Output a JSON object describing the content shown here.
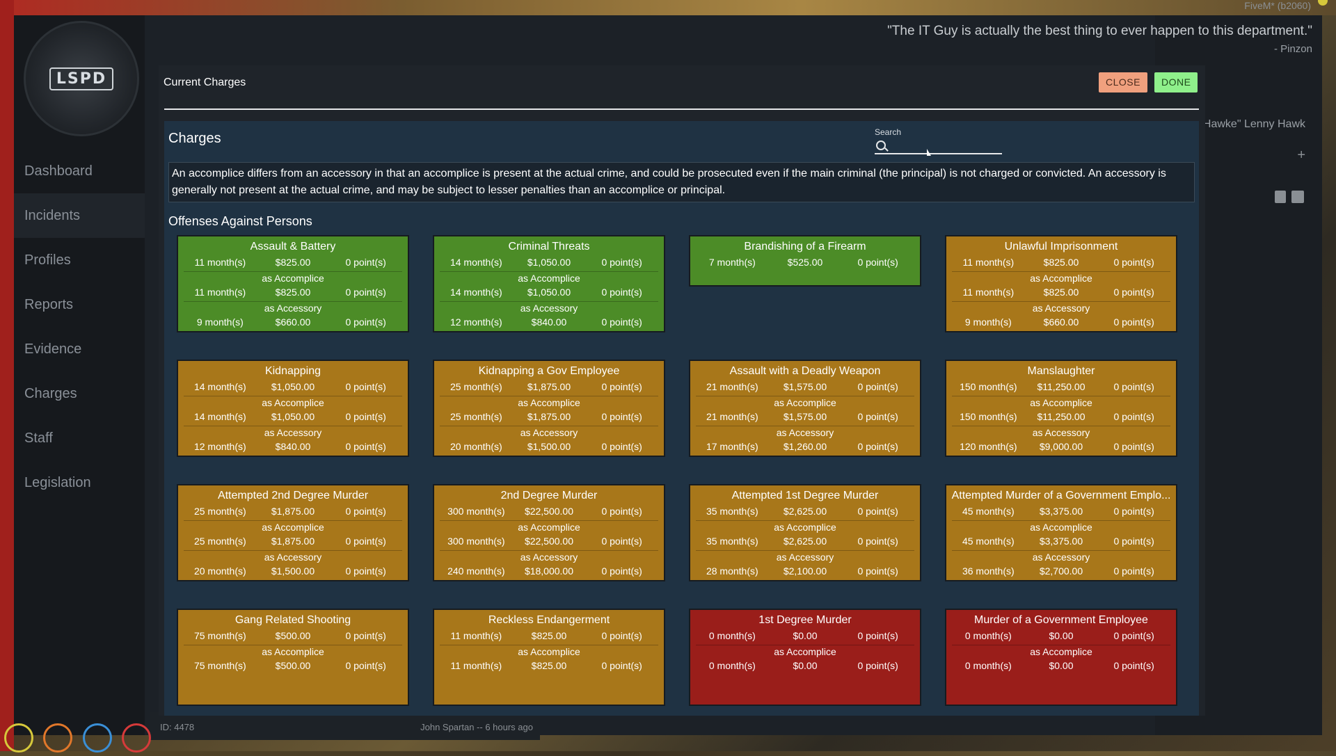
{
  "app": {
    "logo_text": "LSPD",
    "nav": [
      "Dashboard",
      "Incidents",
      "Profiles",
      "Reports",
      "Evidence",
      "Charges",
      "Staff",
      "Legislation"
    ]
  },
  "background": {
    "fivem": "FiveM* (b2060)",
    "quote": "\"The IT Guy is actually the best thing to ever happen to this department.\"",
    "quote_author": "- Pinzon",
    "detective": "det \"Hawke\" Lenny Hawk",
    "plus": "+",
    "report_id": "ID: 4478",
    "report_author": "John Spartan -- 6 hours ago"
  },
  "modal": {
    "title": "Current Charges",
    "close_label": "CLOSE",
    "done_label": "DONE",
    "charges_title": "Charges",
    "search_label": "Search",
    "search_placeholder": "",
    "info": "An accomplice differs from an accessory in that an accomplice is present at the actual crime, and could be prosecuted even if the main criminal (the principal) is not charged or convicted. An accessory is generally not present at the actual crime, and may be subject to lesser penalties than an accomplice or principal.",
    "section": "Offenses Against Persons",
    "accomplice_label": "as Accomplice",
    "accessory_label": "as Accessory"
  },
  "charges": [
    {
      "name": "Assault & Battery",
      "color": "green",
      "main": [
        "11 month(s)",
        "$825.00",
        "0 point(s)"
      ],
      "accomplice": [
        "11 month(s)",
        "$825.00",
        "0 point(s)"
      ],
      "accessory": [
        "9 month(s)",
        "$660.00",
        "0 point(s)"
      ]
    },
    {
      "name": "Criminal Threats",
      "color": "green",
      "main": [
        "14 month(s)",
        "$1,050.00",
        "0 point(s)"
      ],
      "accomplice": [
        "14 month(s)",
        "$1,050.00",
        "0 point(s)"
      ],
      "accessory": [
        "12 month(s)",
        "$840.00",
        "0 point(s)"
      ]
    },
    {
      "name": "Brandishing of a Firearm",
      "color": "green",
      "main": [
        "7 month(s)",
        "$525.00",
        "0 point(s)"
      ]
    },
    {
      "name": "Unlawful Imprisonment",
      "color": "amber",
      "main": [
        "11 month(s)",
        "$825.00",
        "0 point(s)"
      ],
      "accomplice": [
        "11 month(s)",
        "$825.00",
        "0 point(s)"
      ],
      "accessory": [
        "9 month(s)",
        "$660.00",
        "0 point(s)"
      ]
    },
    {
      "name": "Kidnapping",
      "color": "amber",
      "main": [
        "14 month(s)",
        "$1,050.00",
        "0 point(s)"
      ],
      "accomplice": [
        "14 month(s)",
        "$1,050.00",
        "0 point(s)"
      ],
      "accessory": [
        "12 month(s)",
        "$840.00",
        "0 point(s)"
      ]
    },
    {
      "name": "Kidnapping a Gov Employee",
      "color": "amber",
      "main": [
        "25 month(s)",
        "$1,875.00",
        "0 point(s)"
      ],
      "accomplice": [
        "25 month(s)",
        "$1,875.00",
        "0 point(s)"
      ],
      "accessory": [
        "20 month(s)",
        "$1,500.00",
        "0 point(s)"
      ]
    },
    {
      "name": "Assault with a Deadly Weapon",
      "color": "amber",
      "main": [
        "21 month(s)",
        "$1,575.00",
        "0 point(s)"
      ],
      "accomplice": [
        "21 month(s)",
        "$1,575.00",
        "0 point(s)"
      ],
      "accessory": [
        "17 month(s)",
        "$1,260.00",
        "0 point(s)"
      ]
    },
    {
      "name": "Manslaughter",
      "color": "amber",
      "main": [
        "150 month(s)",
        "$11,250.00",
        "0 point(s)"
      ],
      "accomplice": [
        "150 month(s)",
        "$11,250.00",
        "0 point(s)"
      ],
      "accessory": [
        "120 month(s)",
        "$9,000.00",
        "0 point(s)"
      ]
    },
    {
      "name": "Attempted 2nd Degree Murder",
      "color": "amber",
      "main": [
        "25 month(s)",
        "$1,875.00",
        "0 point(s)"
      ],
      "accomplice": [
        "25 month(s)",
        "$1,875.00",
        "0 point(s)"
      ],
      "accessory": [
        "20 month(s)",
        "$1,500.00",
        "0 point(s)"
      ]
    },
    {
      "name": "2nd Degree Murder",
      "color": "amber",
      "main": [
        "300 month(s)",
        "$22,500.00",
        "0 point(s)"
      ],
      "accomplice": [
        "300 month(s)",
        "$22,500.00",
        "0 point(s)"
      ],
      "accessory": [
        "240 month(s)",
        "$18,000.00",
        "0 point(s)"
      ]
    },
    {
      "name": "Attempted 1st Degree Murder",
      "color": "amber",
      "main": [
        "35 month(s)",
        "$2,625.00",
        "0 point(s)"
      ],
      "accomplice": [
        "35 month(s)",
        "$2,625.00",
        "0 point(s)"
      ],
      "accessory": [
        "28 month(s)",
        "$2,100.00",
        "0 point(s)"
      ]
    },
    {
      "name": "Attempted Murder of a Government Emplo...",
      "color": "amber",
      "main": [
        "45 month(s)",
        "$3,375.00",
        "0 point(s)"
      ],
      "accomplice": [
        "45 month(s)",
        "$3,375.00",
        "0 point(s)"
      ],
      "accessory": [
        "36 month(s)",
        "$2,700.00",
        "0 point(s)"
      ]
    },
    {
      "name": "Gang Related Shooting",
      "color": "amber",
      "main": [
        "75 month(s)",
        "$500.00",
        "0 point(s)"
      ],
      "accomplice": [
        "75 month(s)",
        "$500.00",
        "0 point(s)"
      ]
    },
    {
      "name": "Reckless Endangerment",
      "color": "amber",
      "main": [
        "11 month(s)",
        "$825.00",
        "0 point(s)"
      ],
      "accomplice": [
        "11 month(s)",
        "$825.00",
        "0 point(s)"
      ]
    },
    {
      "name": "1st Degree Murder",
      "color": "red",
      "main": [
        "0 month(s)",
        "$0.00",
        "0 point(s)"
      ],
      "accomplice": [
        "0 month(s)",
        "$0.00",
        "0 point(s)"
      ]
    },
    {
      "name": "Murder of a Government Employee",
      "color": "red",
      "main": [
        "0 month(s)",
        "$0.00",
        "0 point(s)"
      ],
      "accomplice": [
        "0 month(s)",
        "$0.00",
        "0 point(s)"
      ]
    }
  ]
}
